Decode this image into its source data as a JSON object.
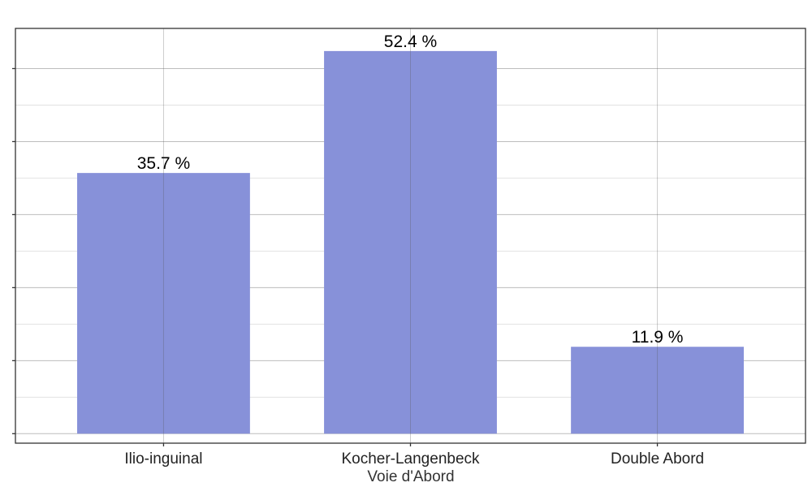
{
  "chart_data": {
    "type": "bar",
    "categories": [
      "Ilio-inguinal",
      "Kocher-Langenbeck",
      "Double Abord"
    ],
    "values": [
      35.7,
      52.4,
      11.9
    ],
    "data_labels": [
      "35.7 %",
      "52.4 %",
      "11.9 %"
    ],
    "xlabel": "Voie d'Abord",
    "ylabel": "",
    "ylim": [
      -1.3,
      55.5
    ],
    "y_ticks": [
      0,
      10,
      20,
      30,
      40,
      50
    ],
    "y_tick_labels_visible": false,
    "grid": true,
    "colors": {
      "bar": "#8791d9",
      "grid_major": "#bdbdbd",
      "grid_minor": "#e2e2e2",
      "frame": "#333333"
    }
  }
}
